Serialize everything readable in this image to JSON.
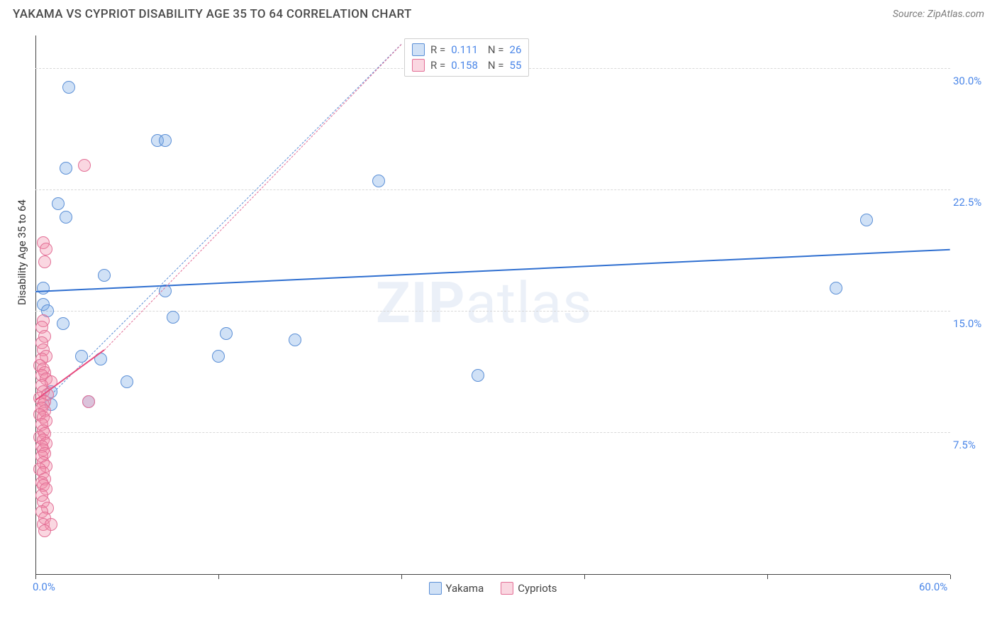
{
  "header": {
    "title": "YAKAMA VS CYPRIOT DISABILITY AGE 35 TO 64 CORRELATION CHART",
    "source_prefix": "Source: ",
    "source": "ZipAtlas.com"
  },
  "chart": {
    "type": "scatter",
    "ylabel": "Disability Age 35 to 64",
    "background_color": "#ffffff",
    "grid_color": "#d8d8d8",
    "axis_color": "#444444",
    "watermark_text_bold": "ZIP",
    "watermark_text_rest": "atlas",
    "watermark_color": "rgba(100,140,200,0.13)",
    "xlim": [
      0,
      60
    ],
    "ylim": [
      0,
      32
    ],
    "y_ticks": [
      {
        "v": 7.5,
        "label": "7.5%"
      },
      {
        "v": 15.0,
        "label": "15.0%"
      },
      {
        "v": 22.5,
        "label": "22.5%"
      },
      {
        "v": 30.0,
        "label": "30.0%"
      }
    ],
    "x_ticks": [
      {
        "v": 0,
        "label": "0.0%"
      },
      {
        "v": 12,
        "label": ""
      },
      {
        "v": 24,
        "label": ""
      },
      {
        "v": 36,
        "label": ""
      },
      {
        "v": 48,
        "label": ""
      },
      {
        "v": 60,
        "label": "60.0%"
      }
    ],
    "marker_radius": 9,
    "marker_border_width": 1.5,
    "series": [
      {
        "name": "Yakama",
        "fill": "rgba(120,170,230,0.35)",
        "stroke": "#5b8fd6",
        "trend": {
          "x1": 0,
          "y1": 16.2,
          "x2": 60,
          "y2": 18.8,
          "color": "#2f6fd0",
          "width": 2,
          "dash": false,
          "extend_x": 24,
          "extend_y": 31.5,
          "extend_dash": true,
          "extend_from_x": 1.2,
          "extend_from_y": 10.0
        },
        "R": "0.111",
        "N": "26",
        "points": [
          {
            "x": 2.2,
            "y": 28.8
          },
          {
            "x": 2.0,
            "y": 23.8
          },
          {
            "x": 8.0,
            "y": 25.5
          },
          {
            "x": 8.5,
            "y": 25.5
          },
          {
            "x": 22.5,
            "y": 23.0
          },
          {
            "x": 1.5,
            "y": 21.6
          },
          {
            "x": 2.0,
            "y": 20.8
          },
          {
            "x": 54.5,
            "y": 20.6
          },
          {
            "x": 4.5,
            "y": 17.2
          },
          {
            "x": 0.5,
            "y": 16.4
          },
          {
            "x": 0.5,
            "y": 15.4
          },
          {
            "x": 52.5,
            "y": 16.4
          },
          {
            "x": 0.8,
            "y": 15.0
          },
          {
            "x": 8.5,
            "y": 16.2
          },
          {
            "x": 9.0,
            "y": 14.6
          },
          {
            "x": 1.8,
            "y": 14.2
          },
          {
            "x": 12.5,
            "y": 13.6
          },
          {
            "x": 17.0,
            "y": 13.2
          },
          {
            "x": 3.0,
            "y": 12.2
          },
          {
            "x": 4.3,
            "y": 12.0
          },
          {
            "x": 12.0,
            "y": 12.2
          },
          {
            "x": 29.0,
            "y": 11.0
          },
          {
            "x": 6.0,
            "y": 10.6
          },
          {
            "x": 3.5,
            "y": 9.4
          },
          {
            "x": 1.0,
            "y": 10.0
          },
          {
            "x": 1.0,
            "y": 9.2
          }
        ]
      },
      {
        "name": "Cypriots",
        "fill": "rgba(240,140,170,0.35)",
        "stroke": "#e36f96",
        "trend": {
          "x1": 0,
          "y1": 9.5,
          "x2": 4.5,
          "y2": 12.6,
          "color": "#e84b7e",
          "width": 2,
          "dash": false,
          "extend_x": 24,
          "extend_y": 31.5,
          "extend_dash": true,
          "extend_from_x": 4.5,
          "extend_from_y": 12.6
        },
        "R": "0.158",
        "N": "55",
        "points": [
          {
            "x": 3.2,
            "y": 24.0
          },
          {
            "x": 0.5,
            "y": 19.2
          },
          {
            "x": 0.7,
            "y": 18.8
          },
          {
            "x": 0.6,
            "y": 18.0
          },
          {
            "x": 0.5,
            "y": 14.4
          },
          {
            "x": 0.4,
            "y": 14.0
          },
          {
            "x": 0.6,
            "y": 13.4
          },
          {
            "x": 0.4,
            "y": 13.0
          },
          {
            "x": 0.5,
            "y": 12.6
          },
          {
            "x": 0.7,
            "y": 12.2
          },
          {
            "x": 0.4,
            "y": 12.0
          },
          {
            "x": 0.3,
            "y": 11.6
          },
          {
            "x": 0.5,
            "y": 11.4
          },
          {
            "x": 0.6,
            "y": 11.2
          },
          {
            "x": 0.4,
            "y": 11.0
          },
          {
            "x": 0.7,
            "y": 10.8
          },
          {
            "x": 1.0,
            "y": 10.6
          },
          {
            "x": 0.4,
            "y": 10.4
          },
          {
            "x": 0.5,
            "y": 10.0
          },
          {
            "x": 0.8,
            "y": 9.8
          },
          {
            "x": 0.3,
            "y": 9.6
          },
          {
            "x": 0.6,
            "y": 9.4
          },
          {
            "x": 3.5,
            "y": 9.4
          },
          {
            "x": 0.5,
            "y": 9.2
          },
          {
            "x": 0.4,
            "y": 9.0
          },
          {
            "x": 0.6,
            "y": 8.8
          },
          {
            "x": 0.3,
            "y": 8.6
          },
          {
            "x": 0.5,
            "y": 8.4
          },
          {
            "x": 0.7,
            "y": 8.2
          },
          {
            "x": 0.4,
            "y": 8.0
          },
          {
            "x": 0.5,
            "y": 7.6
          },
          {
            "x": 0.6,
            "y": 7.4
          },
          {
            "x": 0.3,
            "y": 7.2
          },
          {
            "x": 0.5,
            "y": 7.0
          },
          {
            "x": 0.7,
            "y": 6.8
          },
          {
            "x": 0.4,
            "y": 6.6
          },
          {
            "x": 0.5,
            "y": 6.4
          },
          {
            "x": 0.6,
            "y": 6.2
          },
          {
            "x": 0.4,
            "y": 6.0
          },
          {
            "x": 0.5,
            "y": 5.6
          },
          {
            "x": 0.7,
            "y": 5.4
          },
          {
            "x": 0.3,
            "y": 5.2
          },
          {
            "x": 0.5,
            "y": 5.0
          },
          {
            "x": 0.6,
            "y": 4.6
          },
          {
            "x": 0.4,
            "y": 4.4
          },
          {
            "x": 0.5,
            "y": 4.2
          },
          {
            "x": 0.7,
            "y": 4.0
          },
          {
            "x": 0.4,
            "y": 3.6
          },
          {
            "x": 0.5,
            "y": 3.2
          },
          {
            "x": 0.8,
            "y": 2.8
          },
          {
            "x": 0.4,
            "y": 2.6
          },
          {
            "x": 0.6,
            "y": 2.2
          },
          {
            "x": 0.5,
            "y": 1.8
          },
          {
            "x": 1.0,
            "y": 1.8
          },
          {
            "x": 0.6,
            "y": 1.4
          }
        ]
      }
    ],
    "legend_labels": {
      "R_prefix": "R  =",
      "N_prefix": "N  ="
    }
  }
}
